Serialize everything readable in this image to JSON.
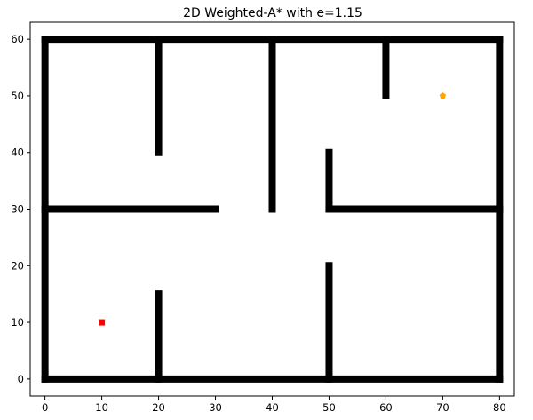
{
  "chart_data": {
    "type": "scatter",
    "title": "2D Weighted-A* with e=1.15",
    "xlabel": "",
    "ylabel": "",
    "xlim": [
      -2.6,
      82.6
    ],
    "ylim": [
      -3.0,
      63.0
    ],
    "xticks": [
      0,
      10,
      20,
      30,
      40,
      50,
      60,
      70,
      80
    ],
    "yticks": [
      0,
      10,
      20,
      30,
      40,
      50,
      60
    ],
    "grid": false,
    "obstacles": [
      {
        "x1": 0,
        "y1": 0,
        "x2": 80,
        "y2": 0
      },
      {
        "x1": 0,
        "y1": 60,
        "x2": 80,
        "y2": 60
      },
      {
        "x1": 0,
        "y1": 0,
        "x2": 0,
        "y2": 60
      },
      {
        "x1": 80,
        "y1": 0,
        "x2": 80,
        "y2": 60
      },
      {
        "x1": 20,
        "y1": 40,
        "x2": 20,
        "y2": 60
      },
      {
        "x1": 40,
        "y1": 30,
        "x2": 40,
        "y2": 60
      },
      {
        "x1": 60,
        "y1": 50,
        "x2": 60,
        "y2": 60
      },
      {
        "x1": 0,
        "y1": 30,
        "x2": 30,
        "y2": 30
      },
      {
        "x1": 50,
        "y1": 30,
        "x2": 50,
        "y2": 40
      },
      {
        "x1": 50,
        "y1": 30,
        "x2": 80,
        "y2": 30
      },
      {
        "x1": 20,
        "y1": 0,
        "x2": 20,
        "y2": 15
      },
      {
        "x1": 50,
        "y1": 0,
        "x2": 50,
        "y2": 20
      }
    ],
    "obstacle_color": "#000000",
    "start": {
      "x": 10,
      "y": 10,
      "color": "#ff0000",
      "marker": "square"
    },
    "goal": {
      "x": 70,
      "y": 50,
      "color": "#ffa500",
      "marker": "pentagon"
    }
  }
}
